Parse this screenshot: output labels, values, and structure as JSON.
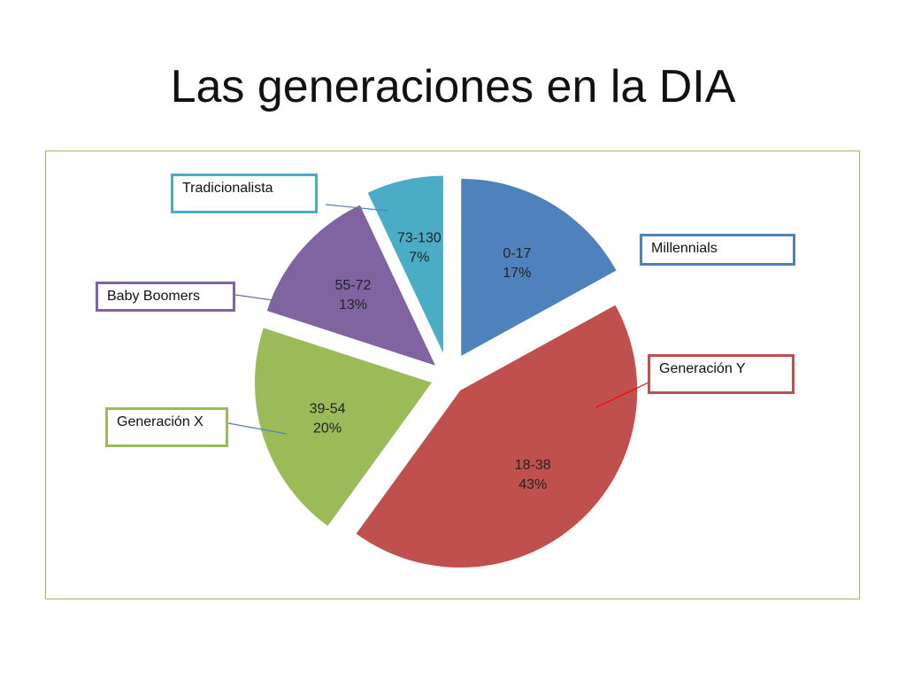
{
  "title": "Las generaciones en la DIA",
  "chart_data": {
    "type": "pie",
    "title": "",
    "slices": [
      {
        "name": "Millennials",
        "range": "0-17",
        "value": 17,
        "label": "17%",
        "color": "#4f81bd"
      },
      {
        "name": "Generación Y",
        "range": "18-38",
        "value": 43,
        "label": "43%",
        "color": "#c0504d"
      },
      {
        "name": "Generación X",
        "range": "39-54",
        "value": 20,
        "label": "20%",
        "color": "#9bbb59"
      },
      {
        "name": "Baby Boomers",
        "range": "55-72",
        "value": 13,
        "label": "13%",
        "color": "#8064a2"
      },
      {
        "name": "Tradicionalista",
        "range": "73-130",
        "value": 7,
        "label": "7%",
        "color": "#4bacc6"
      }
    ],
    "frame_color": "#9bbb59"
  }
}
